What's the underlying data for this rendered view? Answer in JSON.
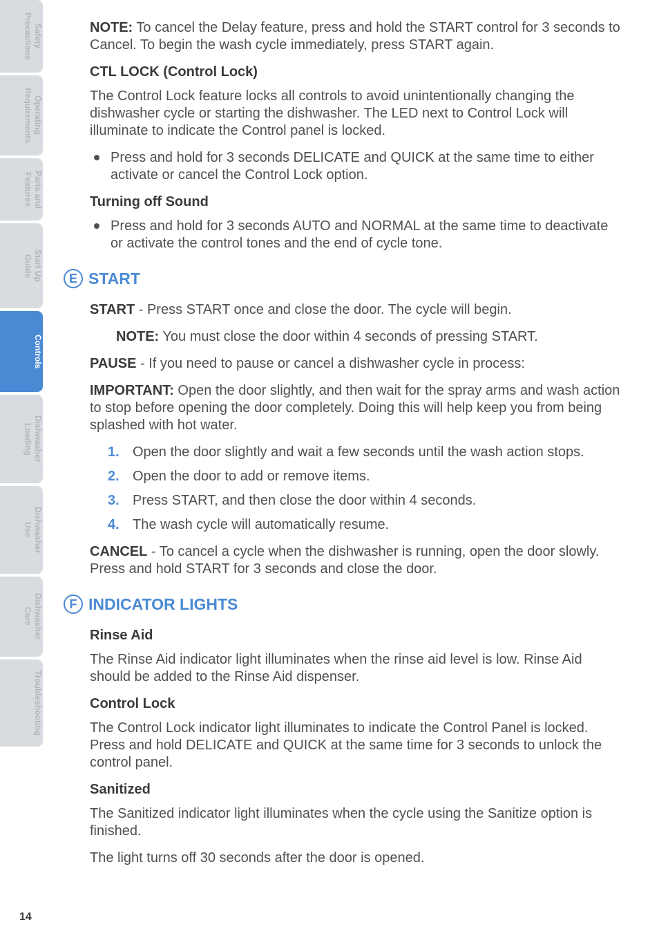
{
  "sidebar": {
    "tabs": [
      {
        "line1": "Safety",
        "line2": "Precautions",
        "active": false
      },
      {
        "line1": "Operating",
        "line2": "Requirements",
        "active": false
      },
      {
        "line1": "Parts and",
        "line2": "Features",
        "active": false
      },
      {
        "line1": "Start Up",
        "line2": "Guide",
        "active": false
      },
      {
        "line1": "Controls",
        "line2": "",
        "active": true
      },
      {
        "line1": "Dishwasher",
        "line2": "Loading",
        "active": false
      },
      {
        "line1": "Dishwasher",
        "line2": "Use",
        "active": false
      },
      {
        "line1": "Dishwasher",
        "line2": "Care",
        "active": false
      },
      {
        "line1": "Troubleshooting",
        "line2": "",
        "active": false
      }
    ]
  },
  "page_number": "14",
  "body": {
    "note_intro_label": "NOTE:",
    "note_intro_text": " To cancel the Delay feature, press and hold the START control for 3 seconds to Cancel. To begin the wash cycle immediately, press START again.",
    "ctl_lock_heading": "CTL LOCK (Control Lock)",
    "ctl_lock_text": "The Control Lock feature locks all controls to avoid unintentionally changing the dishwasher cycle or starting the dishwasher. The LED next to Control Lock will illuminate to indicate the Control panel is locked.",
    "ctl_lock_bullet": "Press and hold for 3 seconds DELICATE and QUICK at the same time to either activate or cancel the Control Lock option.",
    "sound_heading": "Turning off Sound",
    "sound_bullet": "Press and hold for 3 seconds AUTO and NORMAL at the same time to deactivate or activate the control tones and the end of cycle tone.",
    "section_e": {
      "letter": "E",
      "title": "START"
    },
    "start_label": "START",
    "start_text": " - Press START once and close the door. The cycle will begin.",
    "start_note_label": "NOTE:",
    "start_note_text": " You must close the door within 4 seconds of pressing START.",
    "pause_label": "PAUSE",
    "pause_text": " - If you need to pause or cancel a dishwasher cycle in process:",
    "important_label": "IMPORTANT:",
    "important_text": " Open the door slightly, and then wait for the spray arms and wash action to stop before opening the door completely. Doing this will help keep you from being splashed with hot water.",
    "steps": [
      "Open the door slightly and wait a few seconds until the wash action stops.",
      "Open the door to add or remove items.",
      "Press START, and then close the door within 4 seconds.",
      "The wash cycle will automatically resume."
    ],
    "cancel_label": "CANCEL",
    "cancel_text": " - To cancel a cycle when the dishwasher is running, open the door slowly. Press and hold START for 3 seconds and close the door.",
    "section_f": {
      "letter": "F",
      "title": "INDICATOR LIGHTS"
    },
    "rinse_heading": "Rinse Aid",
    "rinse_text": "The Rinse Aid indicator light illuminates when the rinse aid level is low. Rinse Aid should be added to the Rinse Aid dispenser.",
    "control_lock_heading": "Control Lock",
    "control_lock_text": "The Control Lock indicator light illuminates to indicate the Control Panel is locked. Press and hold DELICATE and QUICK at the same time for 3 seconds to unlock the control panel.",
    "sanitized_heading": "Sanitized",
    "sanitized_text1": "The Sanitized indicator light illuminates when the cycle using the Sanitize option is finished.",
    "sanitized_text2": "The light turns off 30 seconds after the door is opened."
  }
}
